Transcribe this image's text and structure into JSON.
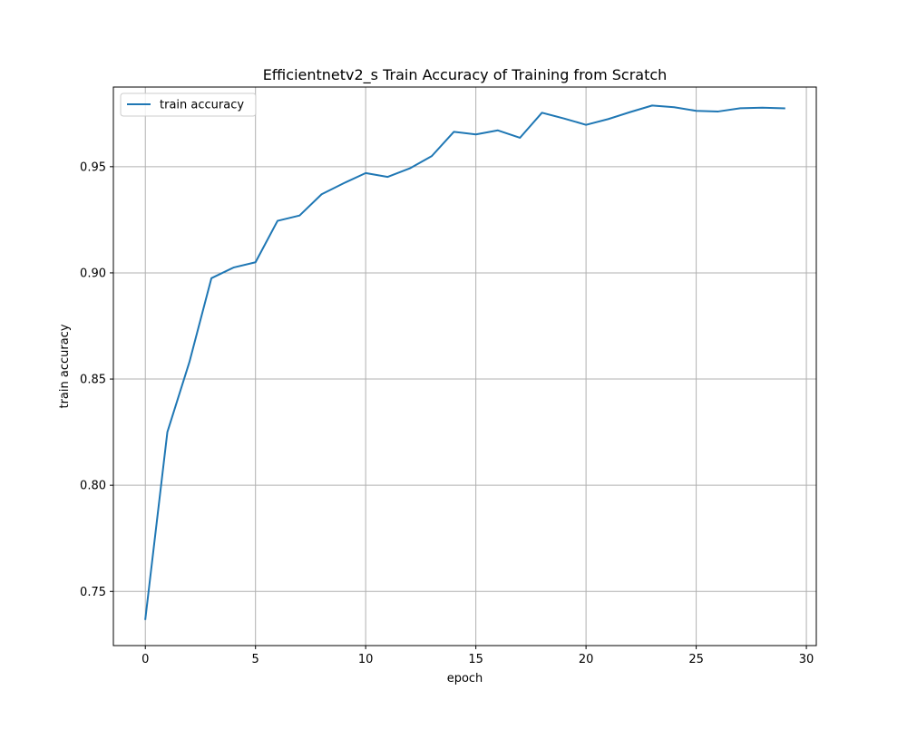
{
  "chart_data": {
    "type": "line",
    "title": "Efficientnetv2_s Train Accuracy of Training from Scratch",
    "xlabel": "epoch",
    "ylabel": "train accuracy",
    "xlim": [
      -1.45,
      30.45
    ],
    "ylim": [
      0.7245,
      0.9875
    ],
    "xticks": [
      0,
      5,
      10,
      15,
      20,
      25,
      30
    ],
    "xtick_labels": [
      "0",
      "5",
      "10",
      "15",
      "20",
      "25",
      "30"
    ],
    "yticks": [
      0.75,
      0.8,
      0.85,
      0.9,
      0.95
    ],
    "ytick_labels": [
      "0.75",
      "0.80",
      "0.85",
      "0.90",
      "0.95"
    ],
    "grid": true,
    "legend_position": "upper-left",
    "series": [
      {
        "name": "train accuracy",
        "color": "#1f77b4",
        "x": [
          0,
          1,
          2,
          3,
          4,
          5,
          6,
          7,
          8,
          9,
          10,
          11,
          12,
          13,
          14,
          15,
          16,
          17,
          18,
          19,
          20,
          21,
          22,
          23,
          24,
          25,
          26,
          27,
          28,
          29
        ],
        "y": [
          0.737,
          0.825,
          0.858,
          0.8975,
          0.9025,
          0.905,
          0.9245,
          0.927,
          0.937,
          0.9422,
          0.947,
          0.9452,
          0.9492,
          0.955,
          0.9664,
          0.9652,
          0.9671,
          0.9636,
          0.9754,
          0.9727,
          0.9697,
          0.9724,
          0.9757,
          0.9788,
          0.978,
          0.9763,
          0.976,
          0.9775,
          0.9778,
          0.9775
        ]
      }
    ]
  }
}
